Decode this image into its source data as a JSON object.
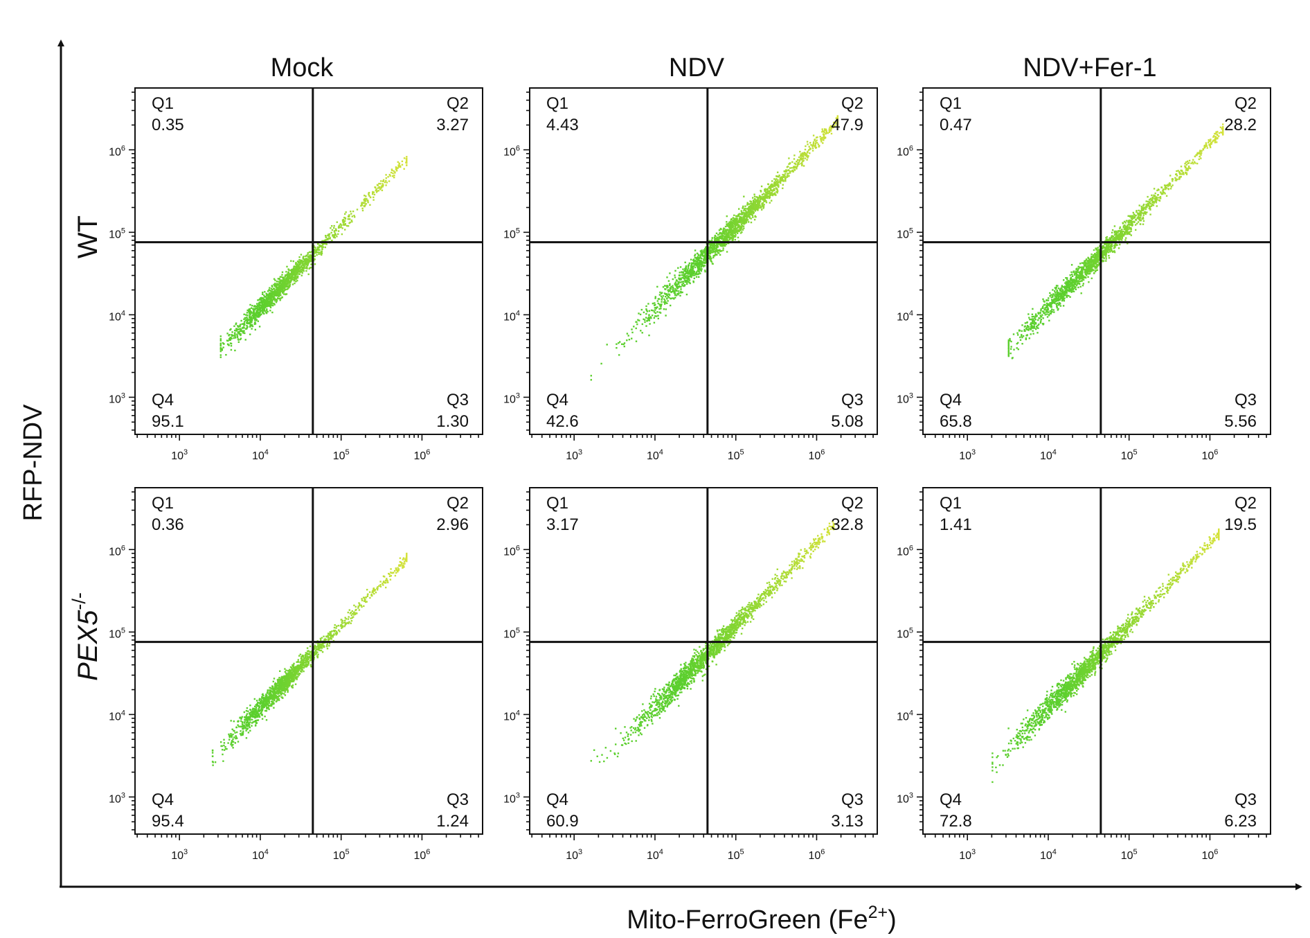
{
  "figure": {
    "y_axis_label": "RFP-NDV",
    "x_axis_label_main": "Mito-FerroGreen (Fe",
    "x_axis_label_sup": "2+",
    "x_axis_label_end": ")"
  },
  "colors": {
    "line": "#111111",
    "point_low": "#5ccf2e",
    "point_high": "#d4e23a"
  },
  "chart_data": {
    "type": "scatter",
    "scale": "log",
    "columns": [
      "Mock",
      "NDV",
      "NDV+Fer-1"
    ],
    "row_labels": [
      "WT",
      "PEX5-/-"
    ],
    "row_label_parts": [
      {
        "main": "WT",
        "sup": ""
      },
      {
        "main": "PEX5",
        "sup": "-/-"
      }
    ],
    "x_ticks": [
      "10^3",
      "10^4",
      "10^5",
      "10^6"
    ],
    "y_ticks": [
      "10^3",
      "10^4",
      "10^5",
      "10^6"
    ],
    "tick_base": "10",
    "tick_exponents": [
      "3",
      "4",
      "5",
      "6"
    ],
    "xlim_log10": [
      2.45,
      6.75
    ],
    "ylim_log10": [
      2.55,
      6.75
    ],
    "gate_log10": {
      "x": 4.65,
      "y": 4.88
    },
    "quadrant_names": [
      "Q1",
      "Q2",
      "Q3",
      "Q4"
    ],
    "panels": [
      {
        "row": "WT",
        "column": "Mock",
        "quadrants": {
          "Q1": "0.35",
          "Q2": "3.27",
          "Q3": "1.30",
          "Q4": "95.1"
        },
        "cloud": {
          "x_from": 3.5,
          "x_to": 5.8,
          "center": 4.2,
          "spread": 0.3,
          "sd": 0.06,
          "n": 1500
        }
      },
      {
        "row": "WT",
        "column": "NDV",
        "quadrants": {
          "Q1": "4.43",
          "Q2": "47.9",
          "Q3": "5.08",
          "Q4": "42.6"
        },
        "cloud": {
          "x_from": 3.2,
          "x_to": 6.25,
          "center": 4.75,
          "spread": 0.45,
          "sd": 0.07,
          "n": 1900
        }
      },
      {
        "row": "WT",
        "column": "NDV+Fer-1",
        "quadrants": {
          "Q1": "0.47",
          "Q2": "28.2",
          "Q3": "5.56",
          "Q4": "65.8"
        },
        "cloud": {
          "x_from": 3.5,
          "x_to": 6.15,
          "center": 4.45,
          "spread": 0.42,
          "sd": 0.065,
          "n": 1700
        }
      },
      {
        "row": "PEX5-/-",
        "column": "Mock",
        "quadrants": {
          "Q1": "0.36",
          "Q2": "2.96",
          "Q3": "1.24",
          "Q4": "95.4"
        },
        "cloud": {
          "x_from": 3.4,
          "x_to": 5.8,
          "center": 4.2,
          "spread": 0.3,
          "sd": 0.06,
          "n": 1500
        }
      },
      {
        "row": "PEX5-/-",
        "column": "NDV",
        "quadrants": {
          "Q1": "3.17",
          "Q2": "32.8",
          "Q3": "3.13",
          "Q4": "60.9"
        },
        "cloud": {
          "x_from": 3.2,
          "x_to": 6.2,
          "center": 4.55,
          "spread": 0.42,
          "sd": 0.07,
          "n": 1800
        }
      },
      {
        "row": "PEX5-/-",
        "column": "NDV+Fer-1",
        "quadrants": {
          "Q1": "1.41",
          "Q2": "19.5",
          "Q3": "6.23",
          "Q4": "72.8"
        },
        "cloud": {
          "x_from": 3.3,
          "x_to": 6.1,
          "center": 4.35,
          "spread": 0.4,
          "sd": 0.07,
          "n": 1700
        }
      }
    ]
  }
}
